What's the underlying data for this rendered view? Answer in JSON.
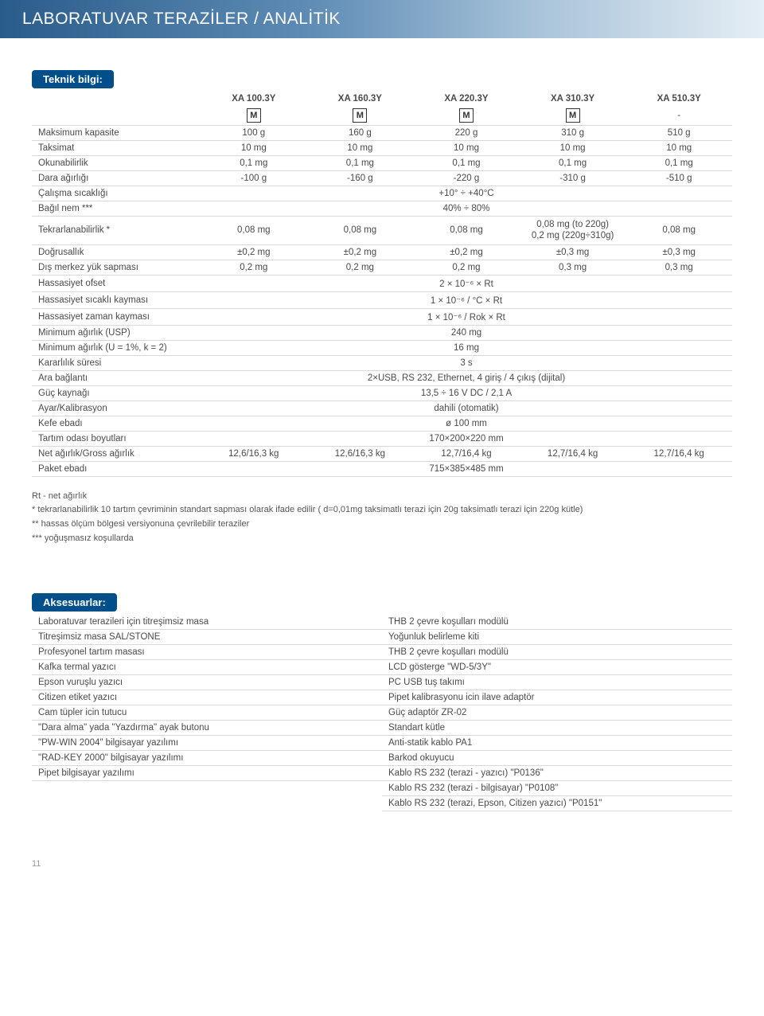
{
  "header": "LABORATUVAR TERAZİLER / ANALİTİK",
  "tech_title": "Teknik bilgi:",
  "models": [
    "XA 100.3Y",
    "XA 160.3Y",
    "XA 220.3Y",
    "XA 310.3Y",
    "XA 510.3Y"
  ],
  "badges": [
    "M",
    "M",
    "M",
    "M",
    "-"
  ],
  "rows": [
    {
      "label": "Maksimum kapasite",
      "v": [
        "100 g",
        "160 g",
        "220 g",
        "310 g",
        "510 g"
      ]
    },
    {
      "label": "Taksimat",
      "v": [
        "10 mg",
        "10 mg",
        "10 mg",
        "10 mg",
        "10 mg"
      ]
    },
    {
      "label": "Okunabilirlik",
      "v": [
        "0,1 mg",
        "0,1 mg",
        "0,1 mg",
        "0,1 mg",
        "0,1 mg"
      ]
    },
    {
      "label": "Dara ağırlığı",
      "v": [
        "-100 g",
        "-160 g",
        "-220 g",
        "-310 g",
        "-510 g"
      ]
    },
    {
      "label": "Çalışma sıcaklığı",
      "span": "+10° ÷ +40°C"
    },
    {
      "label": "Bağıl nem ***",
      "span": "40% ÷ 80%"
    },
    {
      "label": "Tekrarlanabilirlik *",
      "v": [
        "0,08 mg",
        "0,08 mg",
        "0,08 mg",
        "0,08 mg (to 220g)\n0,2 mg (220g÷310g)",
        "0,08 mg"
      ]
    },
    {
      "label": "Doğrusallık",
      "v": [
        "±0,2 mg",
        "±0,2 mg",
        "±0,2 mg",
        "±0,3 mg",
        "±0,3 mg"
      ]
    },
    {
      "label": "Dış merkez yük sapması",
      "v": [
        "0,2 mg",
        "0,2 mg",
        "0,2 mg",
        "0,3 mg",
        "0,3 mg"
      ]
    },
    {
      "label": "Hassasiyet ofset",
      "span": "2 × 10⁻⁶ × Rt"
    },
    {
      "label": "Hassasiyet sıcaklı kayması",
      "span": "1 × 10⁻⁶ / °C × Rt"
    },
    {
      "label": "Hassasiyet zaman kayması",
      "span": "1 × 10⁻⁶ / Rok × Rt"
    },
    {
      "label": "Minimum ağırlık (USP)",
      "span": "240 mg"
    },
    {
      "label": "Minimum ağırlık (U = 1%, k = 2)",
      "span": "16 mg"
    },
    {
      "label": "Kararlılık süresi",
      "span": "3 s"
    },
    {
      "label": "Ara bağlantı",
      "span": "2×USB, RS 232, Ethernet, 4 giriş / 4 çıkış (dijital)"
    },
    {
      "label": "Güç kaynağı",
      "span": "13,5 ÷ 16 V DC / 2,1 A"
    },
    {
      "label": "Ayar/Kalibrasyon",
      "span": "dahili (otomatik)"
    },
    {
      "label": "Kefe ebadı",
      "span": "ø 100 mm"
    },
    {
      "label": "Tartım odası boyutları",
      "span": "170×200×220 mm"
    },
    {
      "label": "Net ağırlık/Gross ağırlık",
      "v": [
        "12,6/16,3 kg",
        "12,6/16,3 kg",
        "12,7/16,4 kg",
        "12,7/16,4 kg",
        "12,7/16,4 kg"
      ]
    },
    {
      "label": "Paket ebadı",
      "span": "715×385×485 mm"
    }
  ],
  "notes": [
    "Rt - net ağırlık",
    "* tekrarlanabilirlik 10 tartım çevriminin standart sapması olarak ifade edilir ( d=0,01mg taksimatlı terazi için 20g taksimatlı terazi için 220g kütle)",
    "** hassas ölçüm bölgesi versiyonuna çevrilebilir teraziler",
    "*** yoğuşmasız koşullarda"
  ],
  "acc_title": "Aksesuarlar:",
  "acc": [
    [
      "Laboratuvar terazileri için titreşimsiz masa",
      "THB 2 çevre koşulları modülü"
    ],
    [
      "Titreşimsiz masa  SAL/STONE",
      "Yoğunluk belirleme kiti"
    ],
    [
      "Profesyonel tartım masası",
      "THB 2 çevre koşulları modülü"
    ],
    [
      "Kafka termal yazıcı",
      "LCD gösterge \"WD-5/3Y\""
    ],
    [
      "Epson vuruşlu yazıcı",
      "PC USB tuş takımı"
    ],
    [
      "Citizen etiket yazıcı",
      "Pipet kalibrasyonu icin ilave adaptör"
    ],
    [
      "Cam tüpler icin tutucu",
      "Güç adaptör ZR-02"
    ],
    [
      "\"Dara alma\" yada  \"Yazdırma\" ayak butonu",
      "Standart kütle"
    ],
    [
      "\"PW-WIN 2004\" bilgisayar yazılımı",
      "Anti-statik kablo PA1"
    ],
    [
      "\"RAD-KEY 2000\" bilgisayar yazılımı",
      "Barkod okuyucu"
    ],
    [
      "Pipet bilgisayar yazılımı",
      "Kablo RS 232 (terazi - yazıcı) \"P0136\""
    ],
    [
      "",
      "Kablo RS 232 (terazi - bilgisayar) \"P0108\""
    ],
    [
      "",
      "Kablo RS 232 (terazi, Epson, Citizen yazıcı) \"P0151\""
    ]
  ],
  "page_num": "11"
}
